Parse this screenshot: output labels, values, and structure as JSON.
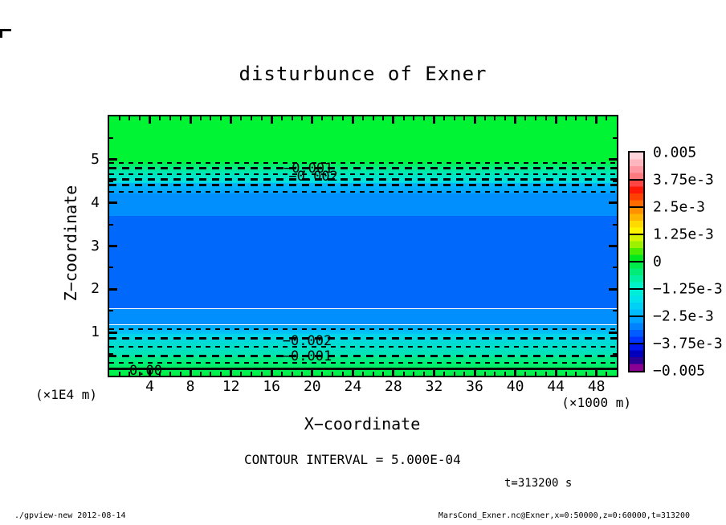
{
  "title": "disturbunce of Exner",
  "axes": {
    "x": {
      "label": "X−coordinate",
      "unit": "(×1000 m)",
      "range": [
        0,
        50
      ],
      "ticks": [
        4,
        8,
        12,
        16,
        20,
        24,
        28,
        32,
        36,
        40,
        44,
        48
      ],
      "minor_step": 1
    },
    "y": {
      "label": "Z−coordinate",
      "unit": "(×1E4 m)",
      "range": [
        0,
        6
      ],
      "ticks": [
        1,
        2,
        3,
        4,
        5
      ],
      "minor_step": 0.5
    }
  },
  "annotations": {
    "contour_interval": "CONTOUR INTERVAL = 5.000E-04",
    "time": "t=313200 s"
  },
  "footer": {
    "left": "./gpview-new  2012-08-14",
    "right": "MarsCond_Exner.nc@Exner,x=0:50000,z=0:60000,t=313200"
  },
  "colorbar": {
    "labels": [
      "0.005",
      "3.75e-3",
      "2.5e-3",
      "1.25e-3",
      "0",
      "−1.25e-3",
      "−2.5e-3",
      "−3.75e-3",
      "−0.005"
    ],
    "values": [
      0.005,
      0.00375,
      0.0025,
      0.00125,
      0,
      -0.00125,
      -0.0025,
      -0.00375,
      -0.005
    ],
    "segments": [
      [
        "#ffd4da",
        "#ffb6be",
        "#ff98a0",
        "#ff7a80"
      ],
      [
        "#ff4444",
        "#ff1808",
        "#ff4000",
        "#ff6a00"
      ],
      [
        "#ff9000",
        "#ffb600",
        "#ffda00",
        "#fdf500"
      ],
      [
        "#d6f400",
        "#9cf000",
        "#4aec00",
        "#00e81e"
      ],
      [
        "#00ec48",
        "#00ee78",
        "#00f0a2",
        "#00f2c8"
      ],
      [
        "#00eed8",
        "#00e2ec",
        "#00d0f6",
        "#00bcfe"
      ],
      [
        "#00a2ff",
        "#0082ff",
        "#005cff",
        "#0034ff"
      ],
      [
        "#0016ee",
        "#0000bc",
        "#2c0092",
        "#8a0092"
      ]
    ]
  },
  "chart_data": {
    "type": "filled-contour",
    "title": "disturbunce of Exner",
    "variable": "Exner",
    "xlabel": "X-coordinate",
    "x_unit": "×1000 m",
    "xlim_m": [
      0,
      50000
    ],
    "ylabel": "Z-coordinate",
    "y_unit": "×1E4 m",
    "zlim_m": [
      0,
      60000
    ],
    "time_s": 313200,
    "contour_interval": 0.0005,
    "field_description": "Horizontally uniform layered disturbance: near zero (green) at top and bottom boundaries, minimum of about -3e-3 (blue) in the middle layer z ≈ 1.5e4 to 3.7e4 m; dashed contours mark negative levels every 5e-4.",
    "bands": [
      {
        "z_top": 6.0,
        "z_bot": 4.98,
        "colors": [
          "#00f434"
        ],
        "value": "≈ 0 to −5e-4"
      },
      {
        "z_top": 4.98,
        "z_bot": 4.46,
        "colors": [
          "#00f434",
          "#00e9b0",
          "#00dfe8"
        ],
        "value": "≈ −5e-4 to −2e-3"
      },
      {
        "z_top": 4.46,
        "z_bot": 4.22,
        "colors": [
          "#00bafc",
          "#00a2fc"
        ],
        "value": "≈ −2.5e-3"
      },
      {
        "z_top": 4.22,
        "z_bot": 3.7,
        "colors": [
          "#008ffc"
        ],
        "value": "≈ −2.6e-3"
      },
      {
        "z_top": 3.7,
        "z_bot": 1.55,
        "colors": [
          "#0068fa"
        ],
        "value": "≈ −3e-3 (minimum)"
      },
      {
        "z_top": 1.55,
        "z_bot": 1.18,
        "colors": [
          "#008ffc"
        ],
        "value": "≈ −2.6e-3"
      },
      {
        "z_top": 1.18,
        "z_bot": 0.96,
        "colors": [
          "#00a6fc",
          "#00c8f6"
        ],
        "value": "≈ −2.5e-3"
      },
      {
        "z_top": 0.96,
        "z_bot": 0.44,
        "colors": [
          "#00d4ee",
          "#00e7ae"
        ],
        "value": "≈ −2e-3 to −5e-4"
      },
      {
        "z_top": 0.44,
        "z_bot": 0.0,
        "colors": [
          "#00ea90",
          "#00f340"
        ],
        "value": "≈ −5e-4 to 0"
      }
    ],
    "contour_lines": [
      {
        "z": 4.93,
        "value": -0.0005,
        "weight": 1,
        "style": "dashed"
      },
      {
        "z": 4.8,
        "value": -0.001,
        "weight": 2,
        "style": "dashed"
      },
      {
        "z": 4.67,
        "value": -0.0015,
        "weight": 1,
        "style": "dashed"
      },
      {
        "z": 4.54,
        "value": -0.002,
        "weight": 2,
        "style": "dashed"
      },
      {
        "z": 4.41,
        "value": -0.0025,
        "weight": 2,
        "style": "dashed"
      },
      {
        "z": 4.25,
        "value": -0.003,
        "weight": 1,
        "style": "dashed"
      },
      {
        "z": 1.08,
        "value": -0.0025,
        "weight": 1,
        "style": "dashed"
      },
      {
        "z": 0.86,
        "value": -0.002,
        "weight": 2,
        "style": "dashed"
      },
      {
        "z": 0.67,
        "value": -0.0015,
        "weight": 1,
        "style": "dashed"
      },
      {
        "z": 0.46,
        "value": -0.001,
        "weight": 2,
        "style": "dashed"
      },
      {
        "z": 0.3,
        "value": -0.0005,
        "weight": 1,
        "style": "dashed"
      },
      {
        "z": 0.15,
        "value": 0,
        "weight": 2,
        "style": "solid"
      }
    ],
    "contour_labels": [
      {
        "text": "−0.001",
        "x": 19.6,
        "z": 4.8
      },
      {
        "text": "−0.002",
        "x": 20.1,
        "z": 4.6
      },
      {
        "text": "−0.002",
        "x": 19.5,
        "z": 0.8
      },
      {
        "text": "−0.001",
        "x": 19.5,
        "z": 0.45
      },
      {
        "text": "0.00",
        "x": 3.6,
        "z": 0.12
      }
    ]
  }
}
